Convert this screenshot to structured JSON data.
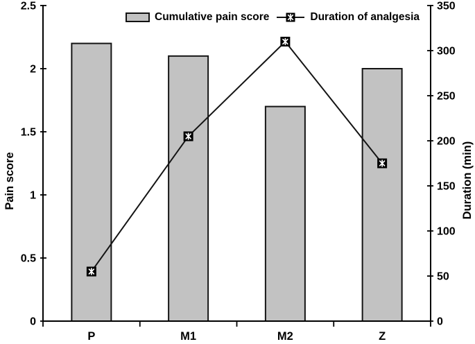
{
  "figure": {
    "background": "#ffffff"
  },
  "chart_data": {
    "type": "bar",
    "subtype": "bar-and-line-dual-axis",
    "categories": [
      "P",
      "M1",
      "M2",
      "Z"
    ],
    "series": [
      {
        "name": "Cumulative pain score",
        "type": "bar",
        "axis": "left",
        "values": [
          2.2,
          2.1,
          1.7,
          2.0
        ]
      },
      {
        "name": "Duration of analgesia",
        "type": "line",
        "axis": "right",
        "values": [
          55,
          205,
          310,
          175
        ]
      }
    ],
    "title": "",
    "xlabel": "",
    "ylabel": "Pain score",
    "ylabel_right": "Duration (min)",
    "ylim_left": [
      0,
      2.5
    ],
    "yticks_left": [
      "0",
      "0.5",
      "1",
      "1.5",
      "2",
      "2.5"
    ],
    "ylim_right": [
      0,
      350
    ],
    "yticks_right": [
      "0",
      "50",
      "100",
      "150",
      "200",
      "250",
      "300",
      "350"
    ],
    "grid": false,
    "legend_position": "top-center",
    "colors": {
      "bar_fill": "#c2c2c2",
      "bar_border": "#141414",
      "line": "#141414",
      "marker_fill": "#000000",
      "marker_symbol": "#ffffff",
      "axis": "#000000",
      "text": "#000000"
    }
  }
}
